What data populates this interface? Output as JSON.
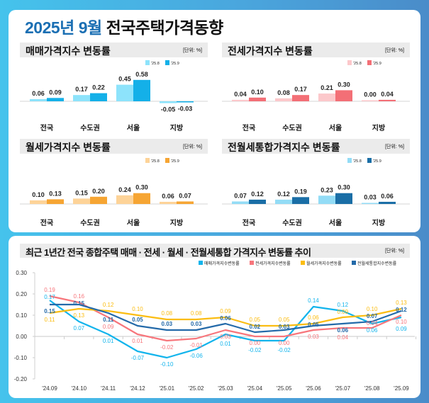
{
  "title": {
    "accent": "2025년 9월",
    "main": "전국주택가격동향"
  },
  "unit_label": "[단위: %]",
  "legend_periods": [
    "'25.8",
    "'25.9"
  ],
  "categories": [
    "전국",
    "수도권",
    "서울",
    "지방"
  ],
  "chart_data": [
    {
      "type": "bar",
      "title": "매매가격지수 변동률",
      "categories": [
        "전국",
        "수도권",
        "서울",
        "지방"
      ],
      "series": [
        {
          "name": "'25.8",
          "values": [
            0.06,
            0.17,
            0.45,
            -0.05
          ],
          "color": "#8de3fb"
        },
        {
          "name": "'25.9",
          "values": [
            0.09,
            0.22,
            0.58,
            -0.03
          ],
          "color": "#14b0e8"
        }
      ]
    },
    {
      "type": "bar",
      "title": "전세가격지수 변동률",
      "categories": [
        "전국",
        "수도권",
        "서울",
        "지방"
      ],
      "series": [
        {
          "name": "'25.8",
          "values": [
            0.04,
            0.08,
            0.21,
            0.0
          ],
          "color": "#fcc8cb"
        },
        {
          "name": "'25.9",
          "values": [
            0.1,
            0.17,
            0.3,
            0.04
          ],
          "color": "#f36f76"
        }
      ]
    },
    {
      "type": "bar",
      "title": "월세가격지수 변동률",
      "categories": [
        "전국",
        "수도권",
        "서울",
        "지방"
      ],
      "series": [
        {
          "name": "'25.8",
          "values": [
            0.1,
            0.15,
            0.24,
            0.06
          ],
          "color": "#fdd398"
        },
        {
          "name": "'25.9",
          "values": [
            0.13,
            0.2,
            0.3,
            0.07
          ],
          "color": "#f6a533"
        }
      ]
    },
    {
      "type": "bar",
      "title": "전월세통합가격지수 변동률",
      "categories": [
        "전국",
        "수도권",
        "서울",
        "지방"
      ],
      "series": [
        {
          "name": "'25.8",
          "values": [
            0.07,
            0.12,
            0.23,
            0.03
          ],
          "color": "#93dcf6"
        },
        {
          "name": "'25.9",
          "values": [
            0.12,
            0.19,
            0.3,
            0.06
          ],
          "color": "#1a6ea6"
        }
      ]
    },
    {
      "type": "line",
      "title": "최근 1년간 전국 종합주택 매매 · 전세 · 월세 · 전월세통합 가격지수 변동률 추이",
      "x": [
        "'24.09",
        "'24.10",
        "'24.11",
        "'24.12",
        "'25.01",
        "'25.02",
        "'25.03",
        "'25.04",
        "'25.05",
        "'25.06",
        "'25.07",
        "'25.08",
        "'25.09"
      ],
      "ylim": [
        -0.2,
        0.3
      ],
      "yticks": [
        "0.30",
        "0.20",
        "0.10",
        "0.00",
        "-0.10",
        "-0.20"
      ],
      "legend": "top-right",
      "series": [
        {
          "name": "매매가격지수변동률",
          "color": "#12b4ec",
          "values": [
            0.17,
            0.07,
            0.01,
            -0.07,
            -0.1,
            -0.06,
            0.01,
            -0.02,
            -0.02,
            0.14,
            0.12,
            0.06,
            0.09
          ]
        },
        {
          "name": "전세가격지수변동률",
          "color": "#f7767c",
          "values": [
            0.19,
            0.16,
            0.09,
            0.01,
            -0.02,
            -0.01,
            0.03,
            0.0,
            0.0,
            0.03,
            0.04,
            0.04,
            0.1
          ]
        },
        {
          "name": "월세가격지수변동률",
          "color": "#fbbd12",
          "values": [
            0.11,
            0.13,
            0.12,
            0.1,
            0.08,
            0.08,
            0.09,
            0.05,
            0.05,
            0.06,
            0.09,
            0.1,
            0.13
          ]
        },
        {
          "name": "전월세통합지수변동률",
          "color": "#246aa9",
          "values": [
            0.15,
            0.15,
            0.11,
            0.05,
            0.03,
            0.03,
            0.06,
            0.02,
            0.03,
            0.05,
            0.06,
            0.07,
            0.12
          ]
        }
      ]
    }
  ]
}
